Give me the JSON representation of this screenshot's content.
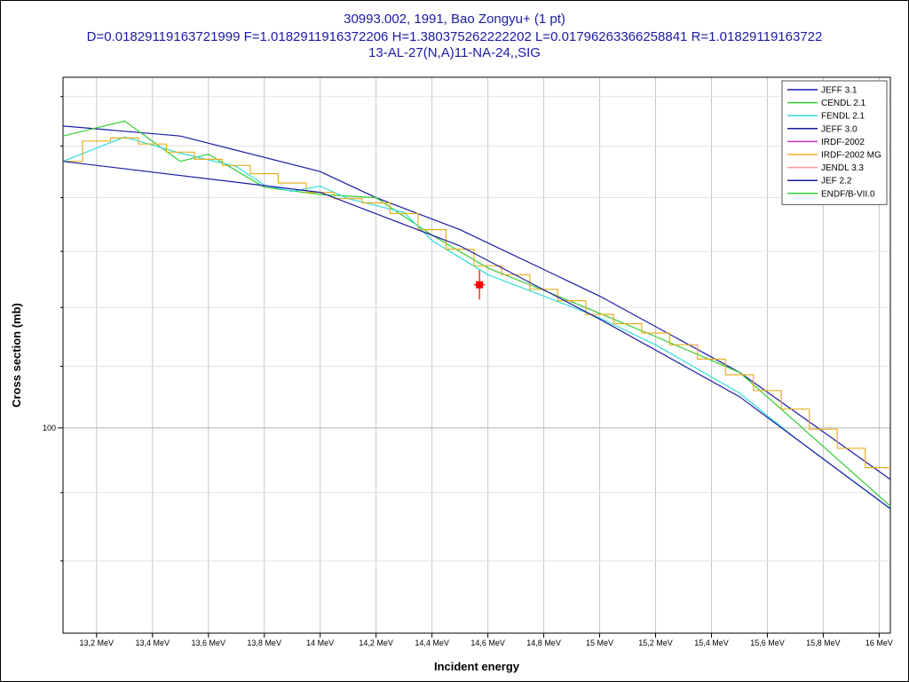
{
  "window": {
    "title_lines": [
      "30993.002, 1991, Bao Zongyu+ (1 pt)",
      "D=0.01829119163721999 F=1.0182911916372206 H=1.380375262222202 L=0.01796263366258841 R=1.01829119163722",
      "13-AL-27(N,A)11-NA-24,,SIG"
    ]
  },
  "chart_data": {
    "type": "line",
    "xlabel": "Incident energy",
    "ylabel": "Cross section (mb)",
    "x_unit": "MeV",
    "xlim": [
      13.08,
      16.04
    ],
    "ylim": [
      85,
      132
    ],
    "y_scale": "log",
    "grid": true,
    "legend_position": "top-right",
    "x_ticks": [
      "13,2 MeV",
      "13,4 MeV",
      "13,6 MeV",
      "13,8 MeV",
      "14 MeV",
      "14,2 MeV",
      "14,4 MeV",
      "14,6 MeV",
      "14,8 MeV",
      "15 MeV",
      "15,2 MeV",
      "15,4 MeV",
      "15,6 MeV",
      "15,8 MeV",
      "16 MeV"
    ],
    "x_tick_values": [
      13.2,
      13.4,
      13.6,
      13.8,
      14.0,
      14.2,
      14.4,
      14.6,
      14.8,
      15.0,
      15.2,
      15.4,
      15.6,
      15.8,
      16.0
    ],
    "y_tick_labels": [
      {
        "value": 100,
        "label": "100"
      }
    ],
    "y_minor_ticks": [
      90,
      95,
      105,
      110,
      115,
      120,
      125,
      130
    ],
    "series": [
      {
        "name": "JEFF 3.1",
        "color": "#1a1aa6",
        "style": "line",
        "x": [
          13.08,
          13.5,
          14.0,
          14.2,
          14.5,
          15.0,
          15.5,
          16.04
        ],
        "y": [
          127.0,
          126.0,
          122.5,
          120.0,
          117.0,
          111.0,
          104.5,
          96.0
        ]
      },
      {
        "name": "CENDL 2.1",
        "color": "#33cc33",
        "style": "line",
        "x": [
          13.08,
          13.3,
          13.5,
          13.6,
          13.8,
          14.0,
          14.2,
          14.4,
          14.6,
          14.8,
          15.0,
          15.2,
          15.5,
          15.7,
          16.04
        ],
        "y": [
          126.0,
          127.5,
          123.5,
          124.2,
          121.0,
          120.3,
          120.0,
          116.5,
          113.5,
          111.5,
          109.5,
          107.5,
          104.5,
          100.5,
          94.0
        ]
      },
      {
        "name": "FENDL 2.1",
        "color": "#33dddd",
        "style": "line",
        "x": [
          13.08,
          13.3,
          13.5,
          13.7,
          13.8,
          13.9,
          14.0,
          14.1,
          14.3,
          14.4,
          14.6,
          14.8,
          15.0,
          15.2,
          15.5,
          15.7,
          16.04
        ],
        "y": [
          123.5,
          125.9,
          124.3,
          123.0,
          121.2,
          120.6,
          121.1,
          119.9,
          118.6,
          116.0,
          112.9,
          111.0,
          109.1,
          106.8,
          102.8,
          99.2,
          93.8
        ]
      },
      {
        "name": "JEFF 3.0",
        "color": "#1a1aa6",
        "style": "line",
        "x": [],
        "y": []
      },
      {
        "name": "IRDF-2002",
        "color": "#cc33cc",
        "style": "line",
        "x": [],
        "y": []
      },
      {
        "name": "IRDF-2002 MG",
        "color": "#e6b020",
        "style": "step",
        "x": [
          13.08,
          13.15,
          13.25,
          13.35,
          13.45,
          13.55,
          13.65,
          13.75,
          13.85,
          13.95,
          14.05,
          14.15,
          14.25,
          14.35,
          14.45,
          14.55,
          14.65,
          14.75,
          14.85,
          14.95,
          15.05,
          15.15,
          15.25,
          15.35,
          15.45,
          15.55,
          15.65,
          15.75,
          15.85,
          15.95,
          16.04
        ],
        "y": [
          123.5,
          125.5,
          125.8,
          125.2,
          124.4,
          123.7,
          123.1,
          122.3,
          121.4,
          120.5,
          119.9,
          119.5,
          118.5,
          117.0,
          115.2,
          113.7,
          112.9,
          111.6,
          110.6,
          109.4,
          108.6,
          107.8,
          106.8,
          105.6,
          104.3,
          103.0,
          101.5,
          99.9,
          98.4,
          96.9,
          94.9
        ]
      },
      {
        "name": "JENDL 3.3",
        "color": "#ff9999",
        "style": "line",
        "x": [],
        "y": []
      },
      {
        "name": "JEF 2.2",
        "color": "#1a1aa6",
        "style": "line",
        "x": [
          13.08,
          14.0,
          14.5,
          15.0,
          15.5,
          16.04
        ],
        "y": [
          123.5,
          120.5,
          115.5,
          109.0,
          102.5,
          93.8
        ]
      },
      {
        "name": "ENDF/B-VII.0",
        "color": "#33cc33",
        "style": "line",
        "x": [],
        "y": []
      }
    ],
    "points": [
      {
        "name": "30993.002, 1991, Bao Zongyu+",
        "x": 14.57,
        "y": 112.0,
        "y_err": 1.3,
        "x_err": 0.02,
        "color": "#ff0000"
      }
    ]
  }
}
